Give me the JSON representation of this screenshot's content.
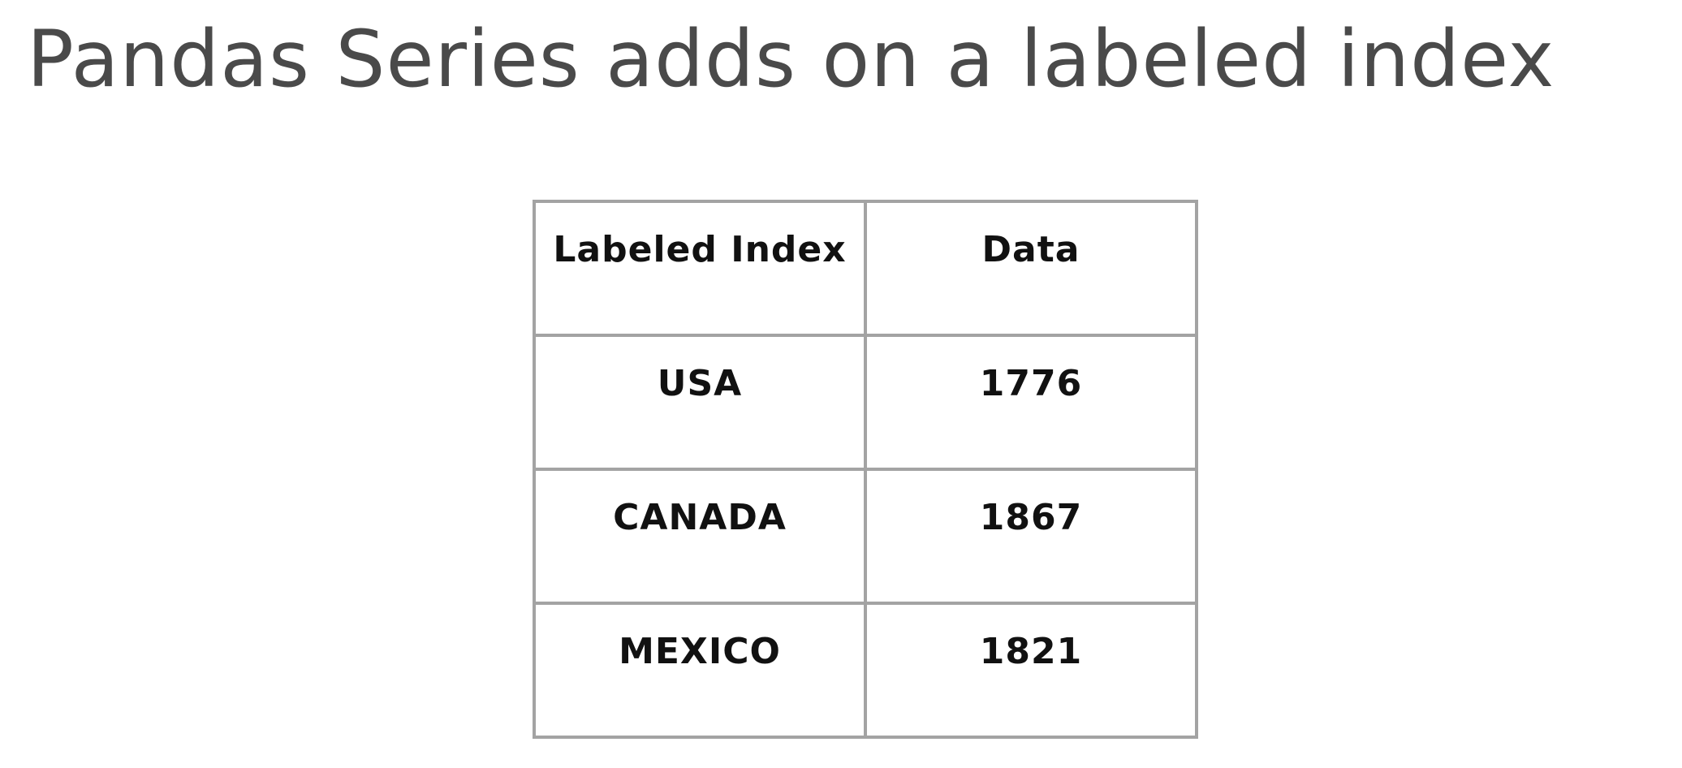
{
  "slide": {
    "title": "Pandas Series adds on a labeled index"
  },
  "table": {
    "headers": [
      "Labeled Index",
      "Data"
    ],
    "rows": [
      [
        "USA",
        "1776"
      ],
      [
        "CANADA",
        "1867"
      ],
      [
        "MEXICO",
        "1821"
      ]
    ]
  },
  "colors": {
    "title": "#4a4a4a",
    "border": "#a3a3a3",
    "cell_text": "#111111",
    "background": "#ffffff"
  }
}
